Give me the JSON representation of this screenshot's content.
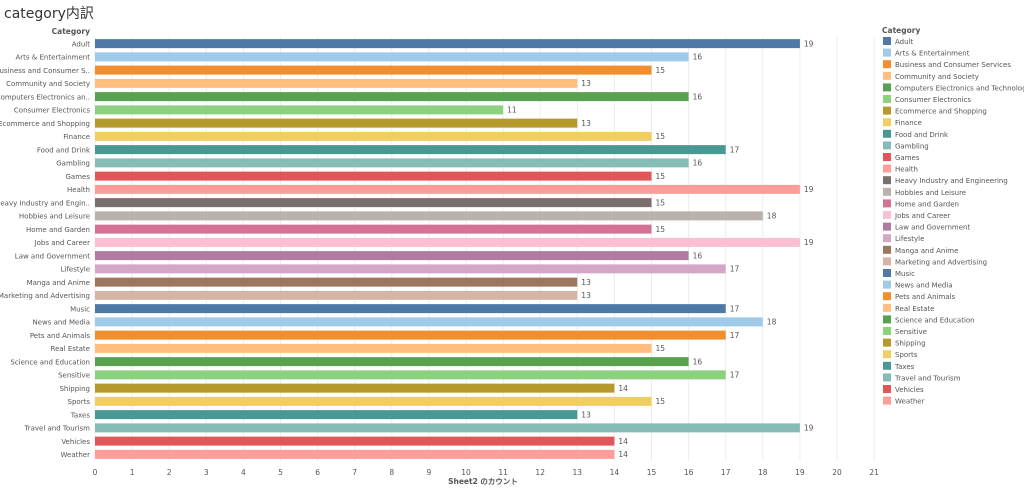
{
  "title": "category内訳",
  "chart_data": {
    "type": "bar",
    "orientation": "horizontal",
    "ylabel": "Category",
    "xlabel": "Sheet2 のカウント",
    "xlim": [
      0,
      21
    ],
    "xticks": [
      0,
      1,
      2,
      3,
      4,
      5,
      6,
      7,
      8,
      9,
      10,
      11,
      12,
      13,
      14,
      15,
      16,
      17,
      18,
      19,
      20,
      21
    ],
    "grid": true,
    "legend_position": "right",
    "legend_title": "Category",
    "categories": [
      "Adult",
      "Arts & Entertainment",
      "Business and Consumer S..",
      "Community and Society",
      "Computers Electronics an..",
      "Consumer Electronics",
      "Ecommerce and Shopping",
      "Finance",
      "Food and Drink",
      "Gambling",
      "Games",
      "Health",
      "Heavy Industry and Engin..",
      "Hobbies and Leisure",
      "Home and Garden",
      "Jobs and Career",
      "Law and Government",
      "Lifestyle",
      "Manga and Anime",
      "Marketing and Advertising",
      "Music",
      "News and Media",
      "Pets and Animals",
      "Real Estate",
      "Science and Education",
      "Sensitive",
      "Shipping",
      "Sports",
      "Taxes",
      "Travel and Tourism",
      "Vehicles",
      "Weather"
    ],
    "legend_labels": [
      "Adult",
      "Arts & Entertainment",
      "Business and Consumer Services",
      "Community and Society",
      "Computers Electronics and Technology",
      "Consumer Electronics",
      "Ecommerce and Shopping",
      "Finance",
      "Food and Drink",
      "Gambling",
      "Games",
      "Health",
      "Heavy Industry and Engineering",
      "Hobbies and Leisure",
      "Home and Garden",
      "Jobs and Career",
      "Law and Government",
      "Lifestyle",
      "Manga and Anime",
      "Marketing and Advertising",
      "Music",
      "News and Media",
      "Pets and Animals",
      "Real Estate",
      "Science and Education",
      "Sensitive",
      "Shipping",
      "Sports",
      "Taxes",
      "Travel and Tourism",
      "Vehicles",
      "Weather"
    ],
    "values": [
      19,
      16,
      15,
      13,
      16,
      11,
      13,
      15,
      17,
      16,
      15,
      19,
      15,
      18,
      15,
      19,
      16,
      17,
      13,
      13,
      17,
      18,
      17,
      15,
      16,
      17,
      14,
      15,
      13,
      19,
      14,
      14
    ],
    "colors": [
      "#4e79a7",
      "#a0cbe8",
      "#f28e2b",
      "#ffbe7d",
      "#59a14f",
      "#8cd17d",
      "#b6992d",
      "#f1ce63",
      "#499894",
      "#86bcb6",
      "#e15759",
      "#ff9d9a",
      "#79706e",
      "#bab0ac",
      "#d37295",
      "#fabfd2",
      "#b07aa1",
      "#d4a6c8",
      "#9d7660",
      "#d7b5a6",
      "#4e79a7",
      "#a0cbe8",
      "#f28e2b",
      "#ffbe7d",
      "#59a14f",
      "#8cd17d",
      "#b6992d",
      "#f1ce63",
      "#499894",
      "#86bcb6",
      "#e15759",
      "#ff9d9a"
    ]
  }
}
